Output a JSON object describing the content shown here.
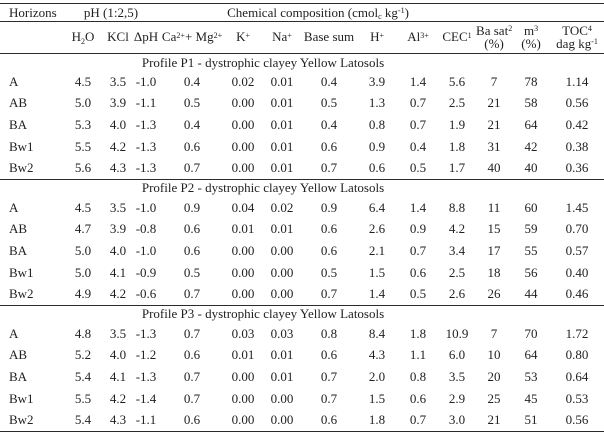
{
  "page": {
    "background": "#ffffff",
    "text_color": "#1f1f1f",
    "rule_color": "#2b2b2b"
  },
  "table": {
    "group_header": {
      "horizons": "Horizons",
      "ph": "pH (1:2,5)",
      "chem": "Chemical composition (cmol~c~ kg^-1^)"
    },
    "column_headers": [
      {
        "line1": "H~2~O",
        "line2": ""
      },
      {
        "line1": "KCl",
        "line2": ""
      },
      {
        "line1": "ΔpH",
        "line2": ""
      },
      {
        "line1": "Ca^2+^+ Mg^2+^",
        "line2": ""
      },
      {
        "line1": "K^+^",
        "line2": ""
      },
      {
        "line1": "Na^+^",
        "line2": ""
      },
      {
        "line1": "Base sum",
        "line2": ""
      },
      {
        "line1": "H^+^",
        "line2": ""
      },
      {
        "line1": "Al^3+^",
        "line2": ""
      },
      {
        "line1": "CEC^1^",
        "line2": ""
      },
      {
        "line1": "Ba sat^2^",
        "line2": "(%)"
      },
      {
        "line1": "m^3^",
        "line2": "(%)"
      },
      {
        "line1": "TOC^4^",
        "line2": "dag kg^-1^"
      }
    ],
    "sections": [
      {
        "caption": "Profile P1 - dystrophic clayey Yellow Latosols",
        "rows": [
          {
            "horizon": "A",
            "values": [
              "4.5",
              "3.5",
              "-1.0",
              "0.4",
              "0.02",
              "0.01",
              "0.4",
              "3.9",
              "1.4",
              "5.6",
              "7",
              "78",
              "1.14"
            ]
          },
          {
            "horizon": "AB",
            "values": [
              "5.0",
              "3.9",
              "-1.1",
              "0.5",
              "0.00",
              "0.01",
              "0.5",
              "1.3",
              "0.7",
              "2.5",
              "21",
              "58",
              "0.56"
            ]
          },
          {
            "horizon": "BA",
            "values": [
              "5.3",
              "4.0",
              "-1.3",
              "0.4",
              "0.00",
              "0.01",
              "0.4",
              "0.8",
              "0.7",
              "1.9",
              "21",
              "64",
              "0.42"
            ]
          },
          {
            "horizon": "Bw1",
            "values": [
              "5.5",
              "4.2",
              "-1.3",
              "0.6",
              "0.00",
              "0.01",
              "0.6",
              "0.9",
              "0.4",
              "1.8",
              "31",
              "42",
              "0.38"
            ]
          },
          {
            "horizon": "Bw2",
            "values": [
              "5.6",
              "4.3",
              "-1.3",
              "0.7",
              "0.00",
              "0.01",
              "0.7",
              "0.6",
              "0.5",
              "1.7",
              "40",
              "40",
              "0.36"
            ]
          }
        ]
      },
      {
        "caption": "Profile P2 - dystrophic clayey Yellow Latosols",
        "rows": [
          {
            "horizon": "A",
            "values": [
              "4.5",
              "3.5",
              "-1.0",
              "0.9",
              "0.04",
              "0.02",
              "0.9",
              "6.4",
              "1.4",
              "8.8",
              "11",
              "60",
              "1.45"
            ]
          },
          {
            "horizon": "AB",
            "values": [
              "4.7",
              "3.9",
              "-0.8",
              "0.6",
              "0.01",
              "0.01",
              "0.6",
              "2.6",
              "0.9",
              "4.2",
              "15",
              "59",
              "0.70"
            ]
          },
          {
            "horizon": "BA",
            "values": [
              "5.0",
              "4.0",
              "-1.0",
              "0.6",
              "0.00",
              "0.00",
              "0.6",
              "2.1",
              "0.7",
              "3.4",
              "17",
              "55",
              "0.57"
            ]
          },
          {
            "horizon": "Bw1",
            "values": [
              "5.0",
              "4.1",
              "-0.9",
              "0.5",
              "0.00",
              "0.00",
              "0.5",
              "1.5",
              "0.6",
              "2.5",
              "18",
              "56",
              "0.40"
            ]
          },
          {
            "horizon": "Bw2",
            "values": [
              "4.9",
              "4.2",
              "-0.6",
              "0.7",
              "0.00",
              "0.00",
              "0.7",
              "1.4",
              "0.5",
              "2.6",
              "26",
              "44",
              "0.46"
            ]
          }
        ]
      },
      {
        "caption": "Profile P3 - dystrophic clayey Yellow Latosols",
        "rows": [
          {
            "horizon": "A",
            "values": [
              "4.8",
              "3.5",
              "-1.3",
              "0.7",
              "0.03",
              "0.03",
              "0.8",
              "8.4",
              "1.8",
              "10.9",
              "7",
              "70",
              "1.72"
            ]
          },
          {
            "horizon": "AB",
            "values": [
              "5.2",
              "4.0",
              "-1.2",
              "0.6",
              "0.01",
              "0.01",
              "0.6",
              "4.3",
              "1.1",
              "6.0",
              "10",
              "64",
              "0.80"
            ]
          },
          {
            "horizon": "BA",
            "values": [
              "5.4",
              "4.1",
              "-1.3",
              "0.7",
              "0.00",
              "0.01",
              "0.7",
              "2.0",
              "0.8",
              "3.5",
              "20",
              "53",
              "0.64"
            ]
          },
          {
            "horizon": "Bw1",
            "values": [
              "5.5",
              "4.2",
              "-1.4",
              "0.7",
              "0.00",
              "0.00",
              "0.7",
              "1.5",
              "0.6",
              "2.9",
              "25",
              "45",
              "0.53"
            ]
          },
          {
            "horizon": "Bw2",
            "values": [
              "5.4",
              "4.3",
              "-1.1",
              "0.6",
              "0.00",
              "0.00",
              "0.6",
              "1.8",
              "0.7",
              "3.0",
              "21",
              "51",
              "0.56"
            ]
          }
        ]
      }
    ]
  }
}
